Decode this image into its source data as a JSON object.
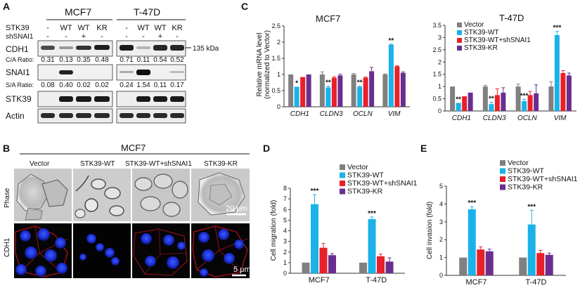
{
  "panel_a": {
    "letter": "A",
    "cell_lines": [
      "MCF7",
      "T-47D"
    ],
    "row_label_stk39": "STK39",
    "row_label_shsnai1": "shSNAI1",
    "stk39_values": [
      [
        "-",
        "WT",
        "WT",
        "KR"
      ],
      [
        "-",
        "WT",
        "WT",
        "KR"
      ]
    ],
    "shsnai1_values": [
      [
        "-",
        "-",
        "+",
        "-"
      ],
      [
        "-",
        "-",
        "+",
        "-"
      ]
    ],
    "blots": [
      "CDH1",
      "SNAI1",
      "STK39",
      "Actin"
    ],
    "ca_label": "C/A Ratio:",
    "ca_ratios": [
      [
        "0.31",
        "0.13",
        "0.35",
        "0.48"
      ],
      [
        "0.71",
        "0.11",
        "0.54",
        "0.52"
      ]
    ],
    "sa_label": "S/A Ratio:",
    "sa_ratios": [
      [
        "0.08",
        "0.40",
        "0.02",
        "0.02"
      ],
      [
        "0.24",
        "1.54",
        "0.11",
        "0.17"
      ]
    ],
    "mw_marker": "135 kDa"
  },
  "panel_b": {
    "letter": "B",
    "title": "MCF7",
    "columns": [
      "Vector",
      "STK39-WT",
      "STK39-WT+shSNAI1",
      "STK39-KR"
    ],
    "rows": [
      "Phase",
      "CDH1"
    ],
    "scalebar_phase": "20 μm",
    "scalebar_cdh1": "5 μm"
  },
  "panel_c": {
    "letter": "C",
    "ylabel_line1": "Relative mRNA level",
    "ylabel_line2": "(normalized to Vector)"
  },
  "panel_d": {
    "letter": "D"
  },
  "panel_e": {
    "letter": "E"
  },
  "colors": {
    "Vector": "#808080",
    "STK39-WT": "#1ab2e8",
    "STK39-WT+shSNAI1": "#e8202a",
    "STK39-KR": "#6a2e8e"
  },
  "chart_data": [
    {
      "id": "c1",
      "type": "bar",
      "title": "MCF7",
      "categories": [
        "CDH1",
        "CLDN3",
        "OCLN",
        "VIM"
      ],
      "series": [
        {
          "name": "Vector",
          "values": [
            1,
            1,
            1,
            1
          ]
        },
        {
          "name": "STK39-WT",
          "values": [
            0.62,
            0.6,
            0.62,
            1.92
          ]
        },
        {
          "name": "STK39-WT+shSNAI1",
          "values": [
            0.92,
            0.9,
            0.9,
            1.25
          ]
        },
        {
          "name": "STK39-KR",
          "values": [
            1.0,
            0.97,
            1.1,
            1.05
          ]
        }
      ],
      "errors": [
        [
          0,
          0.08,
          0.03,
          0.02
        ],
        [
          0,
          0.04,
          0.02,
          0.02
        ],
        [
          0,
          0.03,
          0.02,
          0.02
        ],
        [
          0,
          0.04,
          0.12,
          0.03
        ]
      ],
      "annotations": [
        [
          "*",
          "**",
          "**",
          "**"
        ]
      ],
      "ylim": [
        0,
        2.5
      ],
      "yticks": [
        0,
        0.5,
        1,
        1.5,
        2,
        2.5
      ],
      "ytick_labels": [
        "0",
        "0.5",
        "1",
        "1.5",
        "2",
        "2.5"
      ],
      "ylabel": "Relative mRNA level (normalized to Vector)",
      "legend": "none"
    },
    {
      "id": "c2",
      "type": "bar",
      "title": "T-47D",
      "categories": [
        "CDH1",
        "CLDN3",
        "OCLN",
        "VIM"
      ],
      "series": [
        {
          "name": "Vector",
          "values": [
            1,
            1,
            1,
            1
          ]
        },
        {
          "name": "STK39-WT",
          "values": [
            0.33,
            0.28,
            0.4,
            3.1
          ]
        },
        {
          "name": "STK39-WT+shSNAI1",
          "values": [
            0.6,
            0.65,
            0.65,
            1.55
          ]
        },
        {
          "name": "STK39-KR",
          "values": [
            0.75,
            0.75,
            0.72,
            1.45
          ]
        }
      ],
      "errors": [
        [
          0,
          0.05,
          0.1,
          0.2
        ],
        [
          0,
          0.08,
          0.08,
          0.15
        ],
        [
          0,
          0.25,
          0.15,
          0.1
        ],
        [
          0,
          0.2,
          0.35,
          0.1
        ]
      ],
      "annotations": [
        [
          "**",
          "**",
          "***",
          "***"
        ]
      ],
      "ylim": [
        0,
        3.5
      ],
      "yticks": [
        0,
        0.5,
        1,
        1.5,
        2,
        2.5,
        3,
        3.5
      ],
      "ytick_labels": [
        "0",
        "0.5",
        "1",
        "1.5",
        "2",
        "2.5",
        "3",
        "3.5"
      ],
      "ylabel": "",
      "legend": "top",
      "legend_entries": [
        "Vector",
        "STK39-WT",
        "STK39-WT+shSNAI1",
        "STK39-KR"
      ]
    },
    {
      "id": "d",
      "type": "bar",
      "title": "",
      "categories": [
        "MCF7",
        "T-47D"
      ],
      "series": [
        {
          "name": "Vector",
          "values": [
            1,
            1
          ]
        },
        {
          "name": "STK39-WT",
          "values": [
            6.5,
            5.1
          ]
        },
        {
          "name": "STK39-WT+shSNAI1",
          "values": [
            2.4,
            1.6
          ]
        },
        {
          "name": "STK39-KR",
          "values": [
            1.7,
            1.1
          ]
        }
      ],
      "errors": [
        [
          0,
          0
        ],
        [
          0.9,
          0.2
        ],
        [
          0.4,
          0.2
        ],
        [
          0.15,
          0.35
        ]
      ],
      "annotations": [
        [
          "***",
          "***"
        ]
      ],
      "ylim": [
        0,
        8
      ],
      "yticks": [
        0,
        1,
        2,
        3,
        4,
        5,
        6,
        7,
        8
      ],
      "ytick_labels": [
        "0",
        "1",
        "2",
        "3",
        "4",
        "5",
        "6",
        "7",
        "8"
      ],
      "ylabel": "Cell migration (fold)",
      "legend": "top",
      "legend_entries": [
        "Vector",
        "STK39-WT",
        "STK39-WT+shSNAI1",
        "STK39-KR"
      ]
    },
    {
      "id": "e",
      "type": "bar",
      "title": "",
      "categories": [
        "MCF7",
        "T-47D"
      ],
      "series": [
        {
          "name": "Vector",
          "values": [
            1,
            1
          ]
        },
        {
          "name": "STK39-WT",
          "values": [
            3.7,
            2.85
          ]
        },
        {
          "name": "STK39-WT+shSNAI1",
          "values": [
            1.45,
            1.25
          ]
        },
        {
          "name": "STK39-KR",
          "values": [
            1.35,
            1.15
          ]
        }
      ],
      "errors": [
        [
          0,
          0
        ],
        [
          0.15,
          0.8
        ],
        [
          0.15,
          0.15
        ],
        [
          0.12,
          0.1
        ]
      ],
      "annotations": [
        [
          "***",
          "***"
        ]
      ],
      "ylim": [
        0,
        5
      ],
      "yticks": [
        0,
        1,
        2,
        3,
        4,
        5
      ],
      "ytick_labels": [
        "0",
        "1",
        "2",
        "3",
        "4",
        "5"
      ],
      "ylabel": "Cell invasion (fold)",
      "legend": "top",
      "legend_entries": [
        "Vector",
        "STK39-WT",
        "STK39-WT+shSNAI1",
        "STK39-KR"
      ]
    }
  ]
}
